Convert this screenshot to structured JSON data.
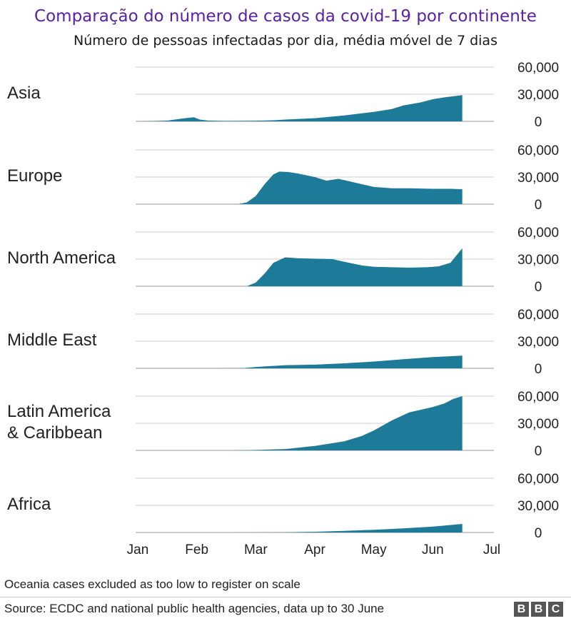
{
  "title": "Comparação do número de casos da covid-19 por continente",
  "subtitle": "Número de pessoas infectadas por dia, média móvel de 7 dias",
  "note": "Oceania cases excluded as too low to register on scale",
  "source": "Source: ECDC and national public health agencies, data up to 30 June",
  "logo": [
    "B",
    "B",
    "C"
  ],
  "colors": {
    "area": "#1d7b99",
    "grid": "#cfcfcf",
    "axis": "#333333",
    "text": "#222222"
  },
  "chart_data": {
    "type": "area",
    "x_unit": "month",
    "x_ticks": [
      "Jan",
      "Feb",
      "Mar",
      "Apr",
      "May",
      "Jun",
      "Jul"
    ],
    "y_ticks": [
      "0",
      "30,000",
      "60,000"
    ],
    "ylim": [
      0,
      60000
    ],
    "grid": true,
    "panels": [
      {
        "label": "Asia",
        "x": [
          1.0,
          1.5,
          1.8,
          1.95,
          2.05,
          2.2,
          2.5,
          3.0,
          3.3,
          3.5,
          4.0,
          4.5,
          5.0,
          5.3,
          5.5,
          5.8,
          6.0,
          6.2,
          6.5
        ],
        "y": [
          0,
          800,
          3500,
          4500,
          2000,
          800,
          500,
          700,
          1200,
          2000,
          3500,
          6500,
          10500,
          13500,
          17500,
          21000,
          24500,
          26500,
          29000
        ]
      },
      {
        "label": "Europe",
        "x": [
          2.0,
          2.7,
          2.85,
          3.0,
          3.15,
          3.3,
          3.4,
          3.55,
          3.7,
          4.0,
          4.2,
          4.4,
          4.6,
          4.8,
          5.0,
          5.3,
          5.6,
          6.0,
          6.3,
          6.5
        ],
        "y": [
          0,
          0,
          2000,
          9000,
          22000,
          33000,
          36000,
          35500,
          34000,
          30000,
          26000,
          28000,
          25000,
          22000,
          19000,
          17500,
          17500,
          17000,
          17000,
          16500
        ]
      },
      {
        "label": "North America",
        "x": [
          2.5,
          2.85,
          3.0,
          3.15,
          3.3,
          3.5,
          3.7,
          4.0,
          4.3,
          4.5,
          4.8,
          5.0,
          5.3,
          5.6,
          5.9,
          6.1,
          6.3,
          6.45,
          6.5
        ],
        "y": [
          0,
          0,
          4000,
          14000,
          26000,
          32000,
          31000,
          30500,
          30000,
          27000,
          23000,
          21500,
          21000,
          20500,
          21000,
          22000,
          26000,
          38000,
          42000
        ]
      },
      {
        "label": "Middle East",
        "x": [
          2.2,
          2.8,
          3.0,
          3.5,
          4.0,
          4.5,
          5.0,
          5.5,
          6.0,
          6.5
        ],
        "y": [
          0,
          300,
          1500,
          3500,
          4000,
          5500,
          7500,
          10000,
          12500,
          14000
        ]
      },
      {
        "label": "Latin America\n& Caribbean",
        "x": [
          2.5,
          3.0,
          3.5,
          4.0,
          4.5,
          4.8,
          5.0,
          5.3,
          5.6,
          6.0,
          6.2,
          6.35,
          6.5
        ],
        "y": [
          0,
          500,
          1500,
          5000,
          10000,
          16000,
          22000,
          33000,
          42000,
          48000,
          52000,
          57000,
          60000
        ]
      },
      {
        "label": "Africa",
        "x": [
          2.5,
          3.0,
          3.5,
          4.0,
          4.5,
          5.0,
          5.5,
          6.0,
          6.5
        ],
        "y": [
          0,
          50,
          300,
          800,
          1800,
          3000,
          4500,
          6500,
          9500
        ]
      }
    ]
  }
}
